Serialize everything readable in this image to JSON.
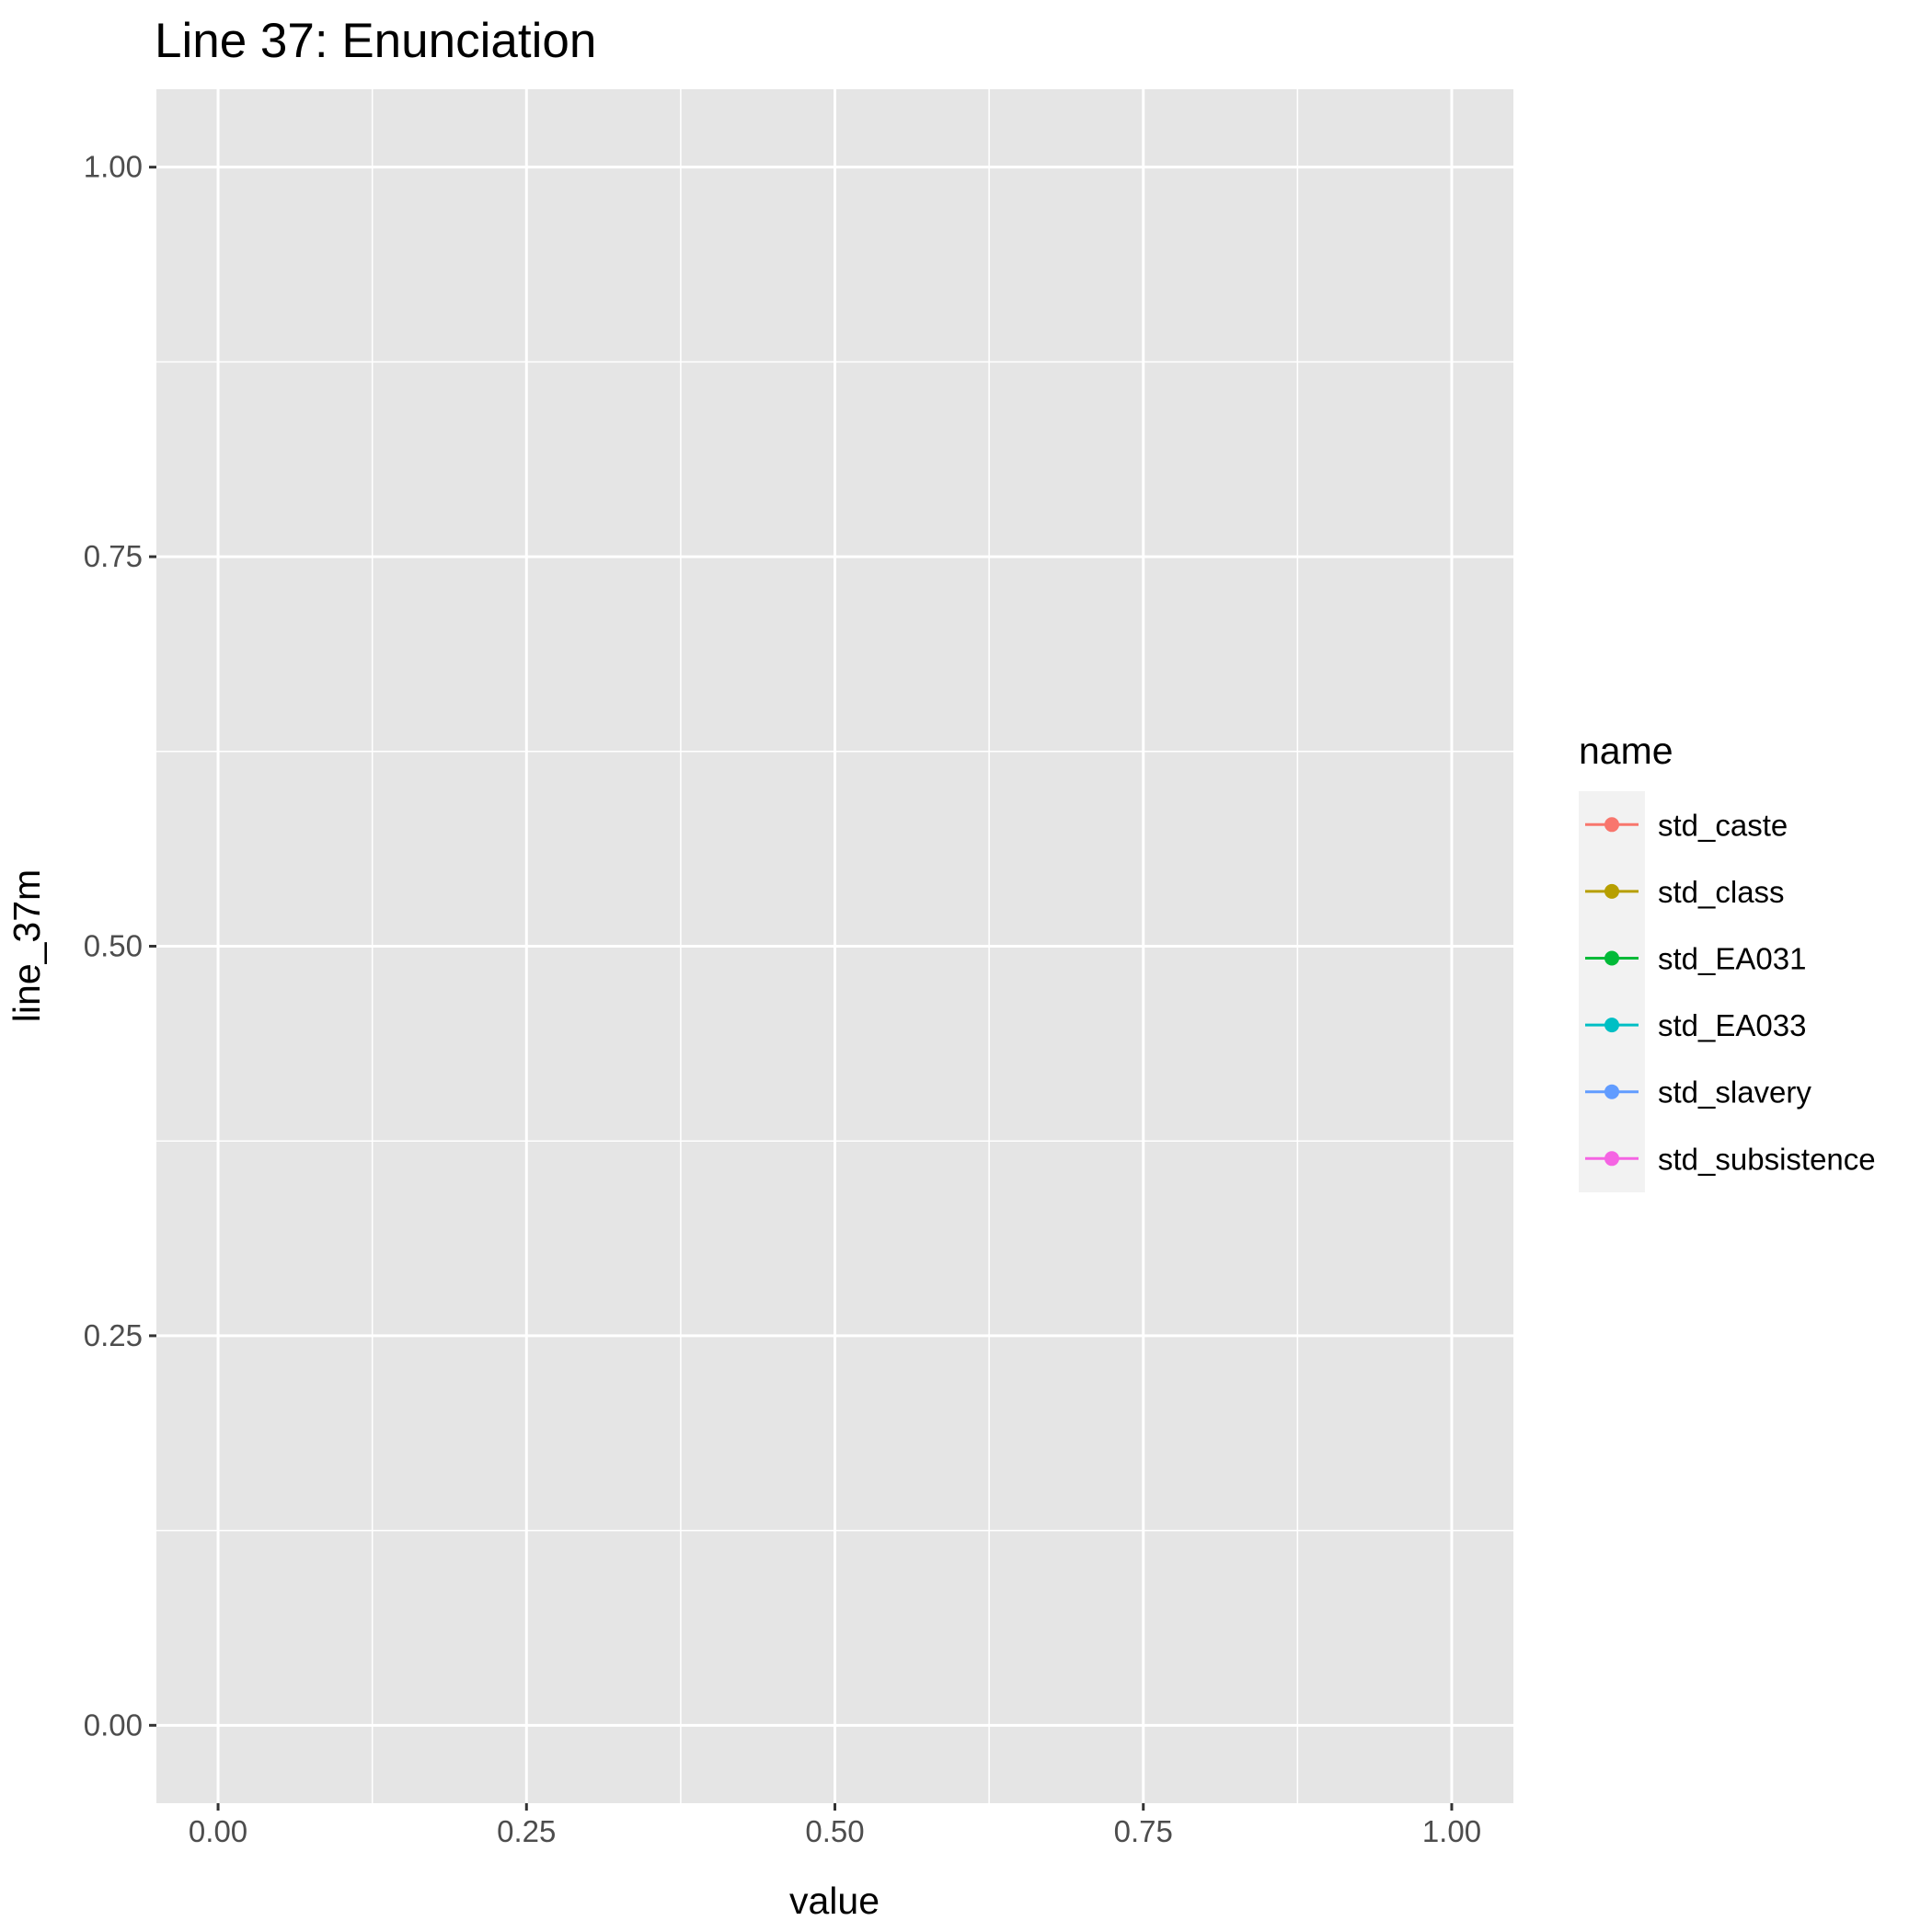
{
  "chart_data": {
    "type": "line",
    "title": "Line 37: Enunciation",
    "xlabel": "value",
    "ylabel": "line_37m",
    "xlim": [
      -0.05,
      1.05
    ],
    "ylim": [
      -0.05,
      1.05
    ],
    "x_ticks": [
      "0.00",
      "0.25",
      "0.50",
      "0.75",
      "1.00"
    ],
    "y_ticks": [
      "0.00",
      "0.25",
      "0.50",
      "0.75",
      "1.00"
    ],
    "grid": true,
    "legend": {
      "title": "name",
      "placement": "right"
    },
    "series": [
      {
        "name": "std_caste",
        "color": "#F8766D",
        "x": [],
        "y": []
      },
      {
        "name": "std_class",
        "color": "#B79F00",
        "x": [],
        "y": []
      },
      {
        "name": "std_EA031",
        "color": "#00BA38",
        "x": [],
        "y": []
      },
      {
        "name": "std_EA033",
        "color": "#00BFC4",
        "x": [],
        "y": []
      },
      {
        "name": "std_slavery",
        "color": "#619CFF",
        "x": [],
        "y": []
      },
      {
        "name": "std_subsistence",
        "color": "#F564E3",
        "x": [],
        "y": []
      }
    ]
  }
}
